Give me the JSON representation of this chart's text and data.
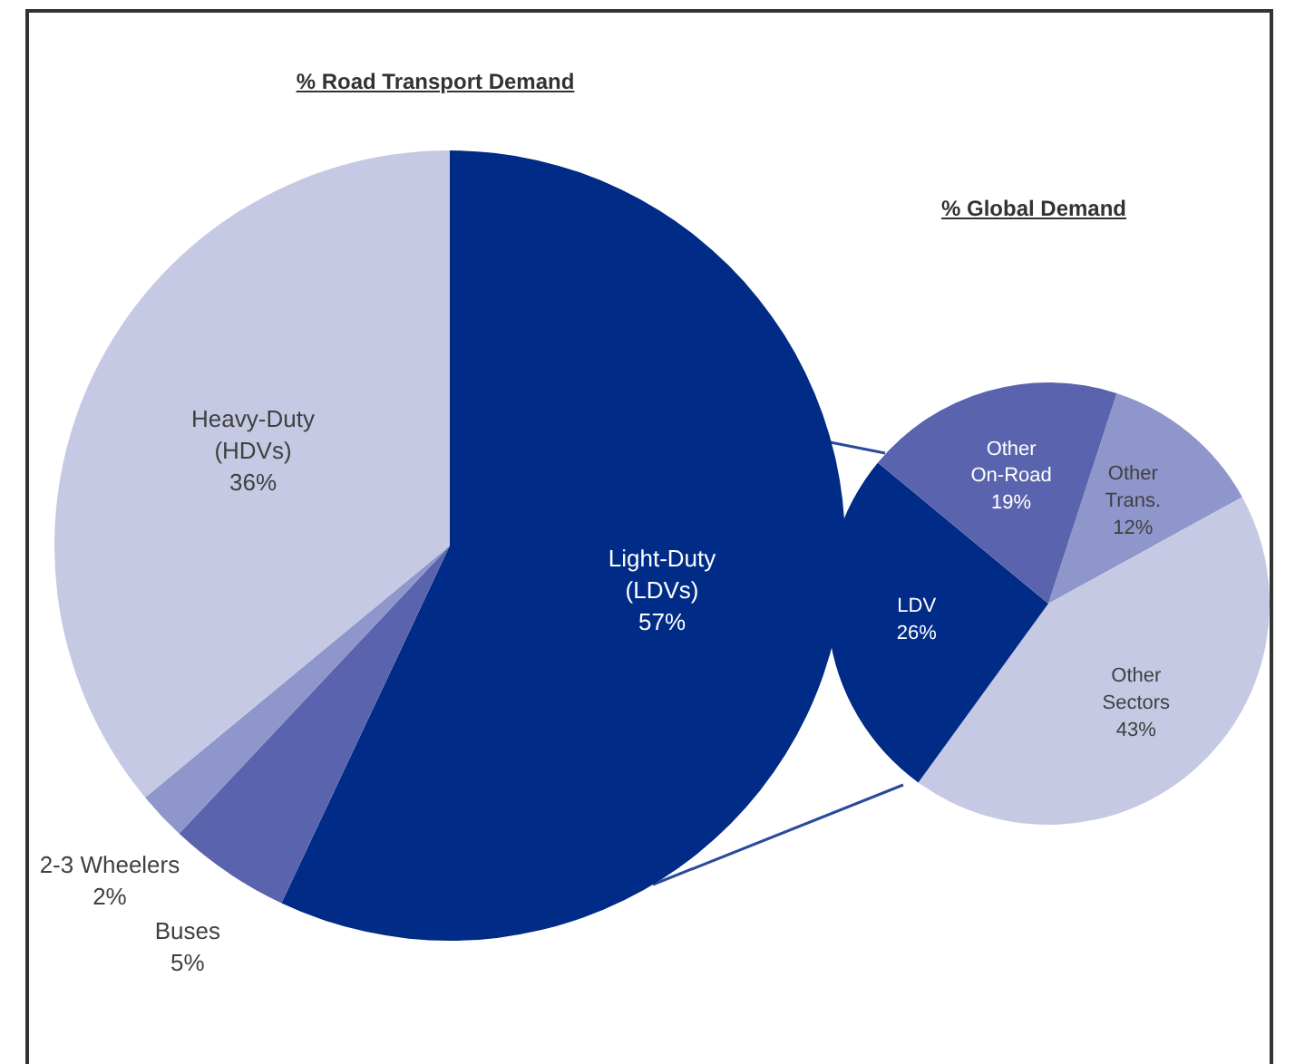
{
  "chart_data": [
    {
      "type": "pie",
      "title": "% Road Transport Demand",
      "categories": [
        "Light-Duty (LDVs)",
        "Buses",
        "2-3 Wheelers",
        "Heavy-Duty (HDVs)"
      ],
      "values": [
        57,
        5,
        2,
        36
      ],
      "colors": [
        "#002b86",
        "#5a63ad",
        "#8e96cb",
        "#c5c9e3"
      ],
      "value_labels": [
        "57%",
        "5%",
        "2%",
        "36%"
      ]
    },
    {
      "type": "pie",
      "title": "% Global Demand",
      "categories": [
        "Other Trans.",
        "Other Sectors",
        "LDV",
        "Other On-Road"
      ],
      "values": [
        12,
        43,
        26,
        19
      ],
      "colors": [
        "#8e96cb",
        "#c5c9e3",
        "#002b86",
        "#5a63ad"
      ],
      "value_labels": [
        "12%",
        "43%",
        "26%",
        "19%"
      ]
    }
  ]
}
